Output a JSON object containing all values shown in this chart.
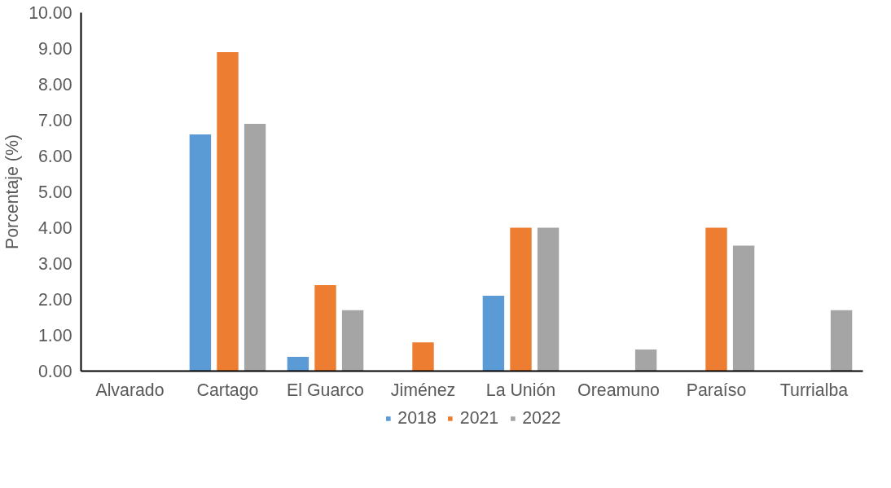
{
  "chart_data": {
    "type": "bar",
    "ylabel": "Porcentaje (%)",
    "categories": [
      "Alvarado",
      "Cartago",
      "El Guarco",
      "Jiménez",
      "La Unión",
      "Oreamuno",
      "Paraíso",
      "Turrialba"
    ],
    "series": [
      {
        "name": "2018",
        "color": "#5b9bd5",
        "values": [
          0,
          6.6,
          0.4,
          0,
          2.1,
          0,
          0,
          0
        ]
      },
      {
        "name": "2021",
        "color": "#ed7d31",
        "values": [
          0,
          8.9,
          2.4,
          0.8,
          4.0,
          0,
          4.0,
          0
        ]
      },
      {
        "name": "2022",
        "color": "#a5a5a5",
        "values": [
          0,
          6.9,
          1.7,
          0,
          4.0,
          0.6,
          3.5,
          1.7
        ]
      }
    ],
    "ylim": [
      0,
      10
    ],
    "yticks": [
      {
        "value": 0,
        "label": "0.00"
      },
      {
        "value": 1,
        "label": "1.00"
      },
      {
        "value": 2,
        "label": "2.00"
      },
      {
        "value": 3,
        "label": "3.00"
      },
      {
        "value": 4,
        "label": "4.00"
      },
      {
        "value": 5,
        "label": "5.00"
      },
      {
        "value": 6,
        "label": "6.00"
      },
      {
        "value": 7,
        "label": "7.00"
      },
      {
        "value": 8,
        "label": "8.00"
      },
      {
        "value": 9,
        "label": "9.00"
      },
      {
        "value": 10,
        "label": "10.00"
      }
    ],
    "grid": false,
    "legend": "bottom"
  }
}
